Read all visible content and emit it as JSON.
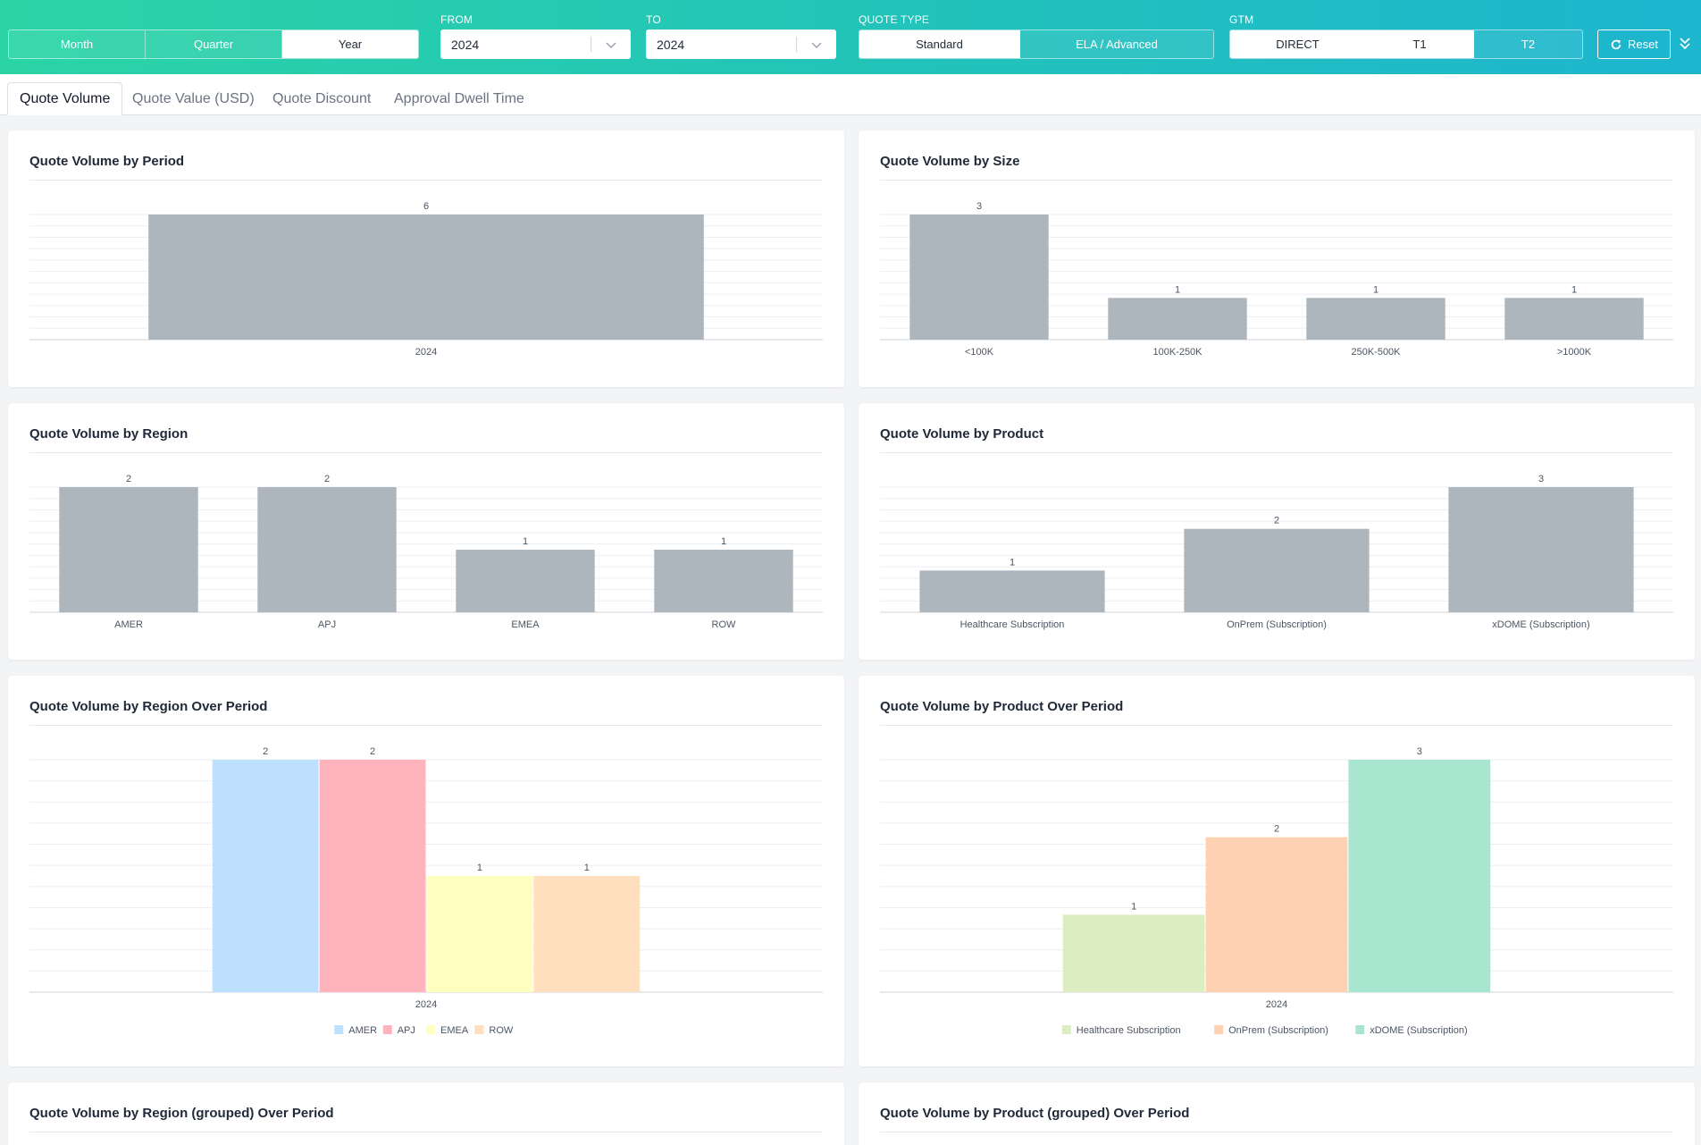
{
  "header": {
    "period_buttons": [
      {
        "label": "Month",
        "active": false
      },
      {
        "label": "Quarter",
        "active": false
      },
      {
        "label": "Year",
        "active": true
      }
    ],
    "from_label": "FROM",
    "from_value": "2024",
    "to_label": "TO",
    "to_value": "2024",
    "quote_type_label": "QUOTE TYPE",
    "quote_type_buttons": [
      {
        "label": "Standard",
        "active": true
      },
      {
        "label": "ELA / Advanced",
        "active": false
      }
    ],
    "gtm_label": "GTM",
    "gtm_buttons": [
      {
        "label": "DIRECT",
        "active": true
      },
      {
        "label": "T1",
        "active": true
      },
      {
        "label": "T2",
        "active": false
      }
    ],
    "reset_label": "Reset",
    "icons": {
      "reset": "refresh-icon",
      "collapse": "double-chevron-down-icon",
      "dropdown": "chevron-down-icon"
    }
  },
  "tabs": [
    {
      "label": "Quote Volume",
      "active": true
    },
    {
      "label": "Quote Value (USD)",
      "active": false
    },
    {
      "label": "Quote Discount",
      "active": false
    },
    {
      "label": "Approval Dwell Time",
      "active": false
    }
  ],
  "colors": {
    "bar_gray": "#adb5bd",
    "AMER": "#bde0fe",
    "APJ": "#ffb3bc",
    "EMEA": "#ffffbf",
    "ROW": "#ffdfbd",
    "Healthcare Subscription": "#dcedc2",
    "OnPrem (Subscription)": "#ffd1b3",
    "xDOME (Subscription)": "#a8e6cf"
  },
  "cards": {
    "period": {
      "title": "Quote Volume by Period"
    },
    "size": {
      "title": "Quote Volume by Size"
    },
    "region": {
      "title": "Quote Volume by Region"
    },
    "product": {
      "title": "Quote Volume by Product"
    },
    "region_over_period": {
      "title": "Quote Volume by Region Over Period"
    },
    "product_over_period": {
      "title": "Quote Volume by Product Over Period"
    },
    "region_grouped": {
      "title": "Quote Volume by Region (grouped) Over Period"
    },
    "product_grouped": {
      "title": "Quote Volume by Product (grouped) Over Period"
    }
  },
  "chart_data": [
    {
      "id": "period",
      "type": "bar",
      "categories": [
        "2024"
      ],
      "values": [
        6
      ],
      "ylim": [
        0,
        6
      ],
      "grid": true,
      "color": "#adb5bd",
      "title": "Quote Volume by Period"
    },
    {
      "id": "size",
      "type": "bar",
      "categories": [
        "<100K",
        "100K-250K",
        "250K-500K",
        ">1000K"
      ],
      "values": [
        3,
        1,
        1,
        1
      ],
      "ylim": [
        0,
        3
      ],
      "grid": true,
      "color": "#adb5bd",
      "title": "Quote Volume by Size"
    },
    {
      "id": "region",
      "type": "bar",
      "categories": [
        "AMER",
        "APJ",
        "EMEA",
        "ROW"
      ],
      "values": [
        2,
        2,
        1,
        1
      ],
      "ylim": [
        0,
        2
      ],
      "grid": true,
      "color": "#adb5bd",
      "title": "Quote Volume by Region"
    },
    {
      "id": "product",
      "type": "bar",
      "categories": [
        "Healthcare Subscription",
        "OnPrem (Subscription)",
        "xDOME (Subscription)"
      ],
      "values": [
        1,
        2,
        3
      ],
      "ylim": [
        0,
        3
      ],
      "grid": true,
      "color": "#adb5bd",
      "title": "Quote Volume by Product"
    },
    {
      "id": "region_over_period",
      "type": "bar",
      "categories": [
        "2024"
      ],
      "series": [
        {
          "name": "AMER",
          "values": [
            2
          ],
          "color": "#bde0fe"
        },
        {
          "name": "APJ",
          "values": [
            2
          ],
          "color": "#ffb3bc"
        },
        {
          "name": "EMEA",
          "values": [
            1
          ],
          "color": "#ffffbf"
        },
        {
          "name": "ROW",
          "values": [
            1
          ],
          "color": "#ffdfbd"
        }
      ],
      "ylim": [
        0,
        2
      ],
      "grid": true,
      "legend": "bottom",
      "title": "Quote Volume by Region Over Period"
    },
    {
      "id": "product_over_period",
      "type": "bar",
      "categories": [
        "2024"
      ],
      "series": [
        {
          "name": "Healthcare Subscription",
          "values": [
            1
          ],
          "color": "#dcedc2"
        },
        {
          "name": "OnPrem (Subscription)",
          "values": [
            2
          ],
          "color": "#ffd1b3"
        },
        {
          "name": "xDOME (Subscription)",
          "values": [
            3
          ],
          "color": "#a8e6cf"
        }
      ],
      "ylim": [
        0,
        3
      ],
      "grid": true,
      "legend": "bottom",
      "title": "Quote Volume by Product Over Period"
    }
  ]
}
